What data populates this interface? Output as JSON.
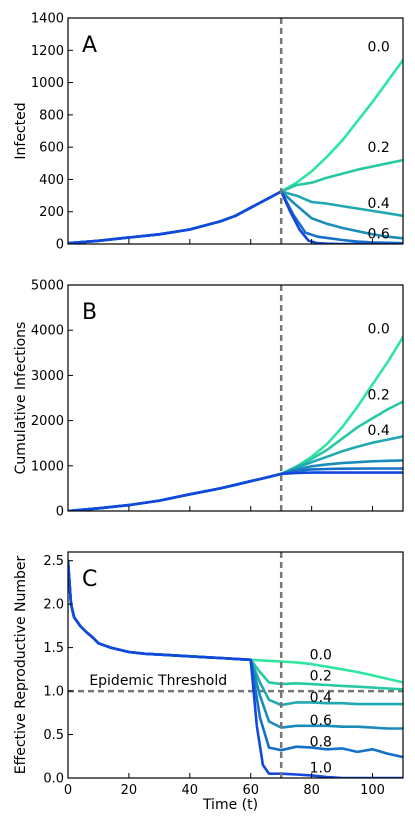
{
  "chart_data": [
    {
      "type": "line",
      "panel_label": "A",
      "xlabel": "",
      "ylabel": "Infected",
      "xlim": [
        0,
        110
      ],
      "ylim": [
        0,
        1400
      ],
      "yticks": [
        0,
        200,
        400,
        600,
        800,
        1000,
        1200,
        1400
      ],
      "xticks": [
        0,
        20,
        40,
        60,
        80,
        100
      ],
      "show_x_tick_labels": false,
      "intervention_time": 70,
      "series_label_x": 102,
      "series": [
        {
          "name": "0.0",
          "color": "#2fe6a0",
          "labeled": true,
          "label_y": 1225,
          "x": [
            70,
            75,
            80,
            85,
            90,
            95,
            100,
            105,
            110
          ],
          "y": [
            325,
            380,
            450,
            540,
            640,
            760,
            880,
            1010,
            1140
          ]
        },
        {
          "name": "0.2",
          "color": "#27c9a4",
          "labeled": true,
          "label_y": 600,
          "x": [
            70,
            75,
            80,
            85,
            90,
            95,
            100,
            105,
            110
          ],
          "y": [
            325,
            365,
            380,
            410,
            435,
            460,
            480,
            500,
            520
          ]
        },
        {
          "name": "0.4",
          "color": "#1fa9b0",
          "labeled": true,
          "label_y": 255,
          "x": [
            70,
            75,
            80,
            85,
            90,
            95,
            100,
            105,
            110
          ],
          "y": [
            325,
            300,
            260,
            250,
            235,
            220,
            205,
            190,
            175
          ]
        },
        {
          "name": "0.6",
          "color": "#1a8cba",
          "labeled": true,
          "label_y": 65,
          "x": [
            70,
            75,
            80,
            85,
            90,
            95,
            100,
            105,
            110
          ],
          "y": [
            325,
            240,
            160,
            125,
            100,
            80,
            60,
            45,
            35
          ]
        },
        {
          "name": "0.8",
          "color": "#1670c8",
          "labeled": false,
          "label_y": 0,
          "x": [
            70,
            74,
            78,
            82,
            86,
            90,
            95,
            100,
            110
          ],
          "y": [
            325,
            180,
            70,
            45,
            35,
            25,
            15,
            10,
            5
          ]
        },
        {
          "name": "1.0",
          "color": "#1448dc",
          "labeled": false,
          "label_y": 0,
          "x": [
            70,
            73,
            76,
            79,
            82,
            85,
            90,
            100,
            110
          ],
          "y": [
            325,
            200,
            90,
            20,
            5,
            2,
            0,
            0,
            0
          ]
        }
      ],
      "common_path": {
        "x": [
          0,
          10,
          20,
          30,
          40,
          50,
          55,
          60,
          65,
          70
        ],
        "y": [
          5,
          20,
          40,
          60,
          90,
          140,
          175,
          225,
          275,
          325
        ]
      }
    },
    {
      "type": "line",
      "panel_label": "B",
      "xlabel": "",
      "ylabel": "Cumulative Infections",
      "xlim": [
        0,
        110
      ],
      "ylim": [
        0,
        5000
      ],
      "yticks": [
        0,
        1000,
        2000,
        3000,
        4000,
        5000
      ],
      "xticks": [
        0,
        20,
        40,
        60,
        80,
        100
      ],
      "show_x_tick_labels": false,
      "intervention_time": 70,
      "series_label_x": 102,
      "series": [
        {
          "name": "0.0",
          "color": "#2fe6a0",
          "labeled": true,
          "label_y": 4040,
          "x": [
            70,
            75,
            80,
            85,
            90,
            95,
            100,
            105,
            110
          ],
          "y": [
            820,
            980,
            1200,
            1480,
            1850,
            2300,
            2800,
            3300,
            3850
          ]
        },
        {
          "name": "0.2",
          "color": "#27c9a4",
          "labeled": true,
          "label_y": 2580,
          "x": [
            70,
            75,
            80,
            85,
            90,
            95,
            100,
            105,
            110
          ],
          "y": [
            820,
            980,
            1150,
            1350,
            1600,
            1850,
            2050,
            2250,
            2420
          ]
        },
        {
          "name": "0.4",
          "color": "#1fa9b0",
          "labeled": true,
          "label_y": 1790,
          "x": [
            70,
            75,
            80,
            85,
            90,
            95,
            100,
            105,
            110
          ],
          "y": [
            820,
            960,
            1080,
            1200,
            1320,
            1420,
            1510,
            1580,
            1650
          ]
        },
        {
          "name": "0.6",
          "color": "#1a8cba",
          "labeled": false,
          "label_y": 0,
          "x": [
            70,
            75,
            80,
            85,
            90,
            95,
            100,
            105,
            110
          ],
          "y": [
            820,
            920,
            990,
            1030,
            1060,
            1080,
            1100,
            1110,
            1120
          ]
        },
        {
          "name": "0.8",
          "color": "#1670c8",
          "labeled": false,
          "label_y": 0,
          "x": [
            70,
            75,
            80,
            85,
            90,
            100,
            110
          ],
          "y": [
            820,
            890,
            920,
            930,
            935,
            940,
            940
          ]
        },
        {
          "name": "1.0",
          "color": "#1448dc",
          "labeled": false,
          "label_y": 0,
          "x": [
            70,
            75,
            80,
            85,
            90,
            100,
            110
          ],
          "y": [
            820,
            840,
            850,
            850,
            850,
            850,
            850
          ]
        }
      ],
      "common_path": {
        "x": [
          0,
          10,
          20,
          30,
          40,
          50,
          55,
          60,
          65,
          70
        ],
        "y": [
          0,
          60,
          130,
          230,
          370,
          500,
          580,
          660,
          740,
          820
        ]
      }
    },
    {
      "type": "line",
      "panel_label": "C",
      "xlabel": "Time (t)",
      "ylabel": "Effective Reproductive Number",
      "xlim": [
        0,
        110
      ],
      "ylim": [
        0,
        2.6
      ],
      "yticks": [
        0.0,
        0.5,
        1.0,
        1.5,
        2.0,
        2.5
      ],
      "ytick_labels": [
        "0.0",
        "0.5",
        "1.0",
        "1.5",
        "2.0",
        "2.5"
      ],
      "xticks": [
        0,
        20,
        40,
        60,
        80,
        100
      ],
      "xtick_labels": [
        "0",
        "20",
        "40",
        "60",
        "80",
        "100"
      ],
      "show_x_tick_labels": true,
      "intervention_time": 70,
      "threshold": {
        "y": 1.0,
        "label": "Epidemic Threshold"
      },
      "series_label_x": 83,
      "series": [
        {
          "name": "0.0",
          "color": "#2fe6a0",
          "labeled": true,
          "label_y": 1.42,
          "x": [
            60,
            65,
            70,
            75,
            80,
            85,
            90,
            95,
            100,
            105,
            110
          ],
          "y": [
            1.36,
            1.35,
            1.34,
            1.33,
            1.31,
            1.28,
            1.25,
            1.22,
            1.18,
            1.14,
            1.1
          ]
        },
        {
          "name": "0.2",
          "color": "#27c9a4",
          "labeled": true,
          "label_y": 1.18,
          "x": [
            60,
            63,
            66,
            70,
            75,
            80,
            85,
            90,
            95,
            100,
            105,
            110
          ],
          "y": [
            1.36,
            1.22,
            1.1,
            1.08,
            1.09,
            1.08,
            1.07,
            1.06,
            1.05,
            1.04,
            1.03,
            1.02
          ]
        },
        {
          "name": "0.4",
          "color": "#1fa9b0",
          "labeled": true,
          "label_y": 0.93,
          "x": [
            60,
            63,
            66,
            70,
            75,
            80,
            85,
            90,
            95,
            100,
            105,
            110
          ],
          "y": [
            1.36,
            1.1,
            0.9,
            0.84,
            0.87,
            0.87,
            0.86,
            0.86,
            0.85,
            0.85,
            0.85,
            0.85
          ]
        },
        {
          "name": "0.6",
          "color": "#1a8cba",
          "labeled": true,
          "label_y": 0.67,
          "x": [
            60,
            63,
            66,
            70,
            75,
            80,
            85,
            90,
            95,
            100,
            105,
            110
          ],
          "y": [
            1.36,
            0.95,
            0.65,
            0.58,
            0.6,
            0.6,
            0.6,
            0.59,
            0.59,
            0.58,
            0.57,
            0.57
          ]
        },
        {
          "name": "0.8",
          "color": "#1670c8",
          "labeled": true,
          "label_y": 0.42,
          "x": [
            60,
            63,
            66,
            70,
            75,
            80,
            85,
            90,
            95,
            100,
            105,
            110
          ],
          "y": [
            1.36,
            0.7,
            0.35,
            0.32,
            0.36,
            0.35,
            0.33,
            0.34,
            0.3,
            0.33,
            0.28,
            0.24
          ]
        },
        {
          "name": "1.0",
          "color": "#1448dc",
          "labeled": true,
          "label_y": 0.12,
          "x": [
            60,
            62,
            64,
            66,
            70,
            75,
            80,
            85,
            90,
            95,
            100,
            110
          ],
          "y": [
            1.36,
            0.6,
            0.15,
            0.05,
            0.05,
            0.04,
            0.03,
            0.01,
            0.0,
            0.0,
            0.0,
            0.0
          ]
        }
      ],
      "common_path": {
        "x": [
          0,
          1,
          2,
          4,
          6,
          8,
          10,
          14,
          20,
          25,
          30,
          35,
          40,
          45,
          50,
          55,
          60
        ],
        "y": [
          2.5,
          2.0,
          1.85,
          1.75,
          1.68,
          1.62,
          1.55,
          1.5,
          1.45,
          1.43,
          1.42,
          1.41,
          1.4,
          1.39,
          1.38,
          1.37,
          1.36
        ]
      }
    }
  ]
}
